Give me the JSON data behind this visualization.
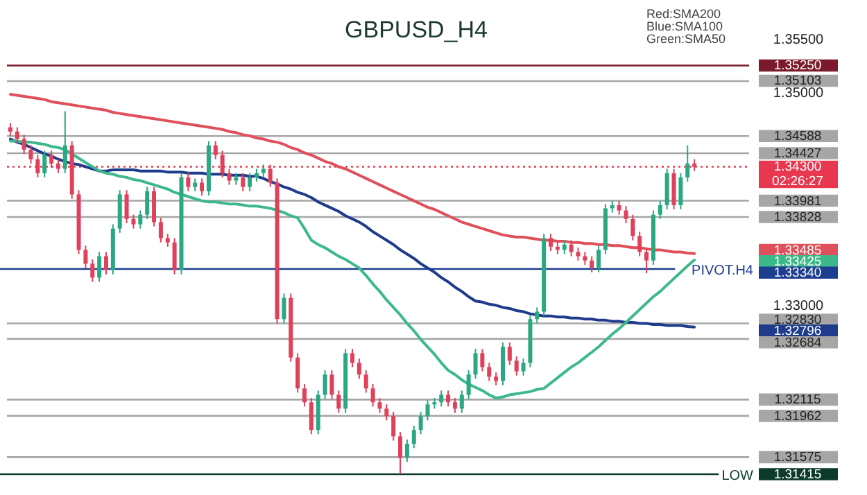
{
  "chart_data": {
    "type": "candlestick",
    "title": "GBPUSD_H4",
    "annotations": [
      "Red:SMA200",
      "Blue:SMA100",
      "Green:SMA50",
      "02:26:27"
    ],
    "categories": [
      null,
      null,
      null,
      null,
      null,
      null,
      null,
      null,
      null,
      null,
      null,
      null,
      null,
      null,
      null,
      null,
      null,
      null,
      null,
      null,
      null,
      null,
      null,
      null,
      null,
      null,
      null,
      null,
      null,
      null,
      null,
      null,
      null,
      null,
      null,
      null,
      null,
      null,
      null,
      null,
      null,
      null,
      null,
      null,
      null,
      null,
      null,
      null,
      null,
      null,
      null,
      null,
      null,
      null,
      null,
      null,
      null,
      null,
      null,
      null,
      null,
      null,
      null,
      null,
      null,
      null,
      null,
      null,
      null,
      null,
      null,
      null,
      null,
      null,
      null,
      null,
      null,
      null,
      null,
      null,
      null,
      null,
      null,
      null,
      null,
      null,
      null,
      null,
      null,
      null,
      null,
      null,
      null,
      null,
      null,
      null,
      null,
      null,
      null,
      null,
      null
    ],
    "ohlc": [
      [
        1.3467,
        1.3471,
        1.3459,
        1.3463
      ],
      [
        1.3463,
        1.3467,
        1.3452,
        1.3456
      ],
      [
        1.3456,
        1.346,
        1.3442,
        1.3446
      ],
      [
        1.3446,
        1.345,
        1.3433,
        1.3437
      ],
      [
        1.3437,
        1.3441,
        1.342,
        1.3424
      ],
      [
        1.3424,
        1.3445,
        1.342,
        1.3441
      ],
      [
        1.3441,
        1.3445,
        1.3429,
        1.3433
      ],
      [
        1.3433,
        1.3437,
        1.3424,
        1.3428
      ],
      [
        1.3428,
        1.3482,
        1.3424,
        1.345
      ],
      [
        1.345,
        1.3454,
        1.34,
        1.3404
      ],
      [
        1.3404,
        1.3408,
        1.3348,
        1.3352
      ],
      [
        1.3352,
        1.3356,
        1.3335,
        1.3339
      ],
      [
        1.3339,
        1.3343,
        1.3322,
        1.3326
      ],
      [
        1.3326,
        1.335,
        1.3322,
        1.3346
      ],
      [
        1.3346,
        1.335,
        1.3329,
        1.3333
      ],
      [
        1.3333,
        1.3376,
        1.3329,
        1.3372
      ],
      [
        1.3372,
        1.3408,
        1.3368,
        1.3404
      ],
      [
        1.3404,
        1.3408,
        1.3377,
        1.3381
      ],
      [
        1.3381,
        1.3385,
        1.3372,
        1.3376
      ],
      [
        1.3376,
        1.3389,
        1.3372,
        1.3385
      ],
      [
        1.3385,
        1.3411,
        1.3381,
        1.3407
      ],
      [
        1.3407,
        1.3411,
        1.3374,
        1.3378
      ],
      [
        1.3378,
        1.3382,
        1.3359,
        1.3363
      ],
      [
        1.3363,
        1.3367,
        1.3355,
        1.3359
      ],
      [
        1.3359,
        1.3363,
        1.3329,
        1.3333
      ],
      [
        1.3333,
        1.3424,
        1.3329,
        1.342
      ],
      [
        1.342,
        1.3424,
        1.3407,
        1.3411
      ],
      [
        1.3411,
        1.3419,
        1.3407,
        1.3415
      ],
      [
        1.3415,
        1.3419,
        1.3403,
        1.3407
      ],
      [
        1.3407,
        1.3454,
        1.3403,
        1.345
      ],
      [
        1.345,
        1.3454,
        1.3437,
        1.3441
      ],
      [
        1.3441,
        1.3445,
        1.342,
        1.3424
      ],
      [
        1.3424,
        1.3428,
        1.3413,
        1.3417
      ],
      [
        1.3417,
        1.3424,
        1.3413,
        1.342
      ],
      [
        1.342,
        1.3424,
        1.3407,
        1.3411
      ],
      [
        1.3411,
        1.3424,
        1.3407,
        1.342
      ],
      [
        1.342,
        1.3428,
        1.3416,
        1.3424
      ],
      [
        1.3424,
        1.3432,
        1.342,
        1.3428
      ],
      [
        1.3428,
        1.3432,
        1.3411,
        1.3415
      ],
      [
        1.3415,
        1.3419,
        1.3283,
        1.3287
      ],
      [
        1.3287,
        1.3311,
        1.3283,
        1.3307
      ],
      [
        1.3307,
        1.3311,
        1.3247,
        1.3251
      ],
      [
        1.3251,
        1.3255,
        1.3218,
        1.3222
      ],
      [
        1.3222,
        1.3226,
        1.3205,
        1.3209
      ],
      [
        1.3209,
        1.3213,
        1.3179,
        1.3183
      ],
      [
        1.3183,
        1.322,
        1.3179,
        1.3216
      ],
      [
        1.3216,
        1.3239,
        1.3212,
        1.3235
      ],
      [
        1.3235,
        1.3239,
        1.3212,
        1.3216
      ],
      [
        1.3216,
        1.322,
        1.3199,
        1.3203
      ],
      [
        1.3203,
        1.3259,
        1.3199,
        1.3255
      ],
      [
        1.3255,
        1.3259,
        1.3242,
        1.3246
      ],
      [
        1.3246,
        1.325,
        1.3231,
        1.3235
      ],
      [
        1.3235,
        1.3239,
        1.3218,
        1.3222
      ],
      [
        1.3222,
        1.3226,
        1.3205,
        1.3209
      ],
      [
        1.3209,
        1.3213,
        1.3199,
        1.3203
      ],
      [
        1.3203,
        1.3207,
        1.3192,
        1.3196
      ],
      [
        1.3196,
        1.32,
        1.3173,
        1.3177
      ],
      [
        1.3177,
        1.3181,
        1.31415,
        1.3157
      ],
      [
        1.3157,
        1.3174,
        1.3153,
        1.317
      ],
      [
        1.317,
        1.3187,
        1.3166,
        1.3183
      ],
      [
        1.3183,
        1.32,
        1.3179,
        1.3196
      ],
      [
        1.3196,
        1.3211,
        1.3192,
        1.3207
      ],
      [
        1.3207,
        1.3213,
        1.3203,
        1.3209
      ],
      [
        1.3209,
        1.322,
        1.3205,
        1.3216
      ],
      [
        1.3216,
        1.322,
        1.3205,
        1.3209
      ],
      [
        1.3209,
        1.3213,
        1.3199,
        1.3203
      ],
      [
        1.3203,
        1.322,
        1.3199,
        1.3216
      ],
      [
        1.3216,
        1.3239,
        1.3212,
        1.3235
      ],
      [
        1.3235,
        1.3259,
        1.3231,
        1.3255
      ],
      [
        1.3255,
        1.3259,
        1.3238,
        1.3242
      ],
      [
        1.3242,
        1.3246,
        1.3229,
        1.3233
      ],
      [
        1.3233,
        1.3237,
        1.3225,
        1.3229
      ],
      [
        1.3229,
        1.3265,
        1.3225,
        1.3261
      ],
      [
        1.3261,
        1.3265,
        1.3244,
        1.3248
      ],
      [
        1.3248,
        1.3252,
        1.3234,
        1.3238
      ],
      [
        1.3238,
        1.325,
        1.3234,
        1.3246
      ],
      [
        1.3246,
        1.3291,
        1.3242,
        1.3287
      ],
      [
        1.3287,
        1.3298,
        1.3283,
        1.3294
      ],
      [
        1.3294,
        1.3367,
        1.329,
        1.3363
      ],
      [
        1.3363,
        1.3367,
        1.3351,
        1.3355
      ],
      [
        1.3355,
        1.3359,
        1.3348,
        1.3352
      ],
      [
        1.3352,
        1.3361,
        1.3348,
        1.3357
      ],
      [
        1.3357,
        1.3361,
        1.3346,
        1.335
      ],
      [
        1.335,
        1.3354,
        1.3342,
        1.3346
      ],
      [
        1.3346,
        1.335,
        1.3338,
        1.3342
      ],
      [
        1.3342,
        1.3346,
        1.3331,
        1.3335
      ],
      [
        1.3335,
        1.3356,
        1.3331,
        1.3352
      ],
      [
        1.3352,
        1.3395,
        1.3348,
        1.3391
      ],
      [
        1.3391,
        1.3398,
        1.3387,
        1.3394
      ],
      [
        1.3394,
        1.3398,
        1.3385,
        1.3389
      ],
      [
        1.3389,
        1.3393,
        1.3377,
        1.3381
      ],
      [
        1.3381,
        1.3385,
        1.3361,
        1.3365
      ],
      [
        1.3365,
        1.3369,
        1.3346,
        1.335
      ],
      [
        1.335,
        1.3354,
        1.333,
        1.3342
      ],
      [
        1.3342,
        1.3389,
        1.3338,
        1.3385
      ],
      [
        1.3385,
        1.3398,
        1.3381,
        1.3394
      ],
      [
        1.3394,
        1.3428,
        1.339,
        1.3424
      ],
      [
        1.3424,
        1.3428,
        1.339,
        1.3394
      ],
      [
        1.3394,
        1.3424,
        1.339,
        1.342
      ],
      [
        1.342,
        1.345,
        1.3416,
        1.3433
      ],
      [
        1.3433,
        1.3437,
        1.3426,
        1.343
      ]
    ],
    "series": [
      {
        "type": "line",
        "color": "#e0505a",
        "values": [
          1.3498,
          1.3497,
          1.3496,
          1.3495,
          1.3494,
          1.3493,
          1.3491,
          1.349,
          1.3489,
          1.3488,
          1.3487,
          1.3486,
          1.3485,
          1.3484,
          1.3483,
          1.3481,
          1.348,
          1.3479,
          1.3478,
          1.3477,
          1.3476,
          1.3475,
          1.3474,
          1.3473,
          1.3472,
          1.3471,
          1.347,
          1.3469,
          1.3468,
          1.3467,
          1.3466,
          1.3465,
          1.3463,
          1.3462,
          1.346,
          1.3459,
          1.3457,
          1.3456,
          1.3454,
          1.3453,
          1.3451,
          1.3448,
          1.3446,
          1.3443,
          1.3441,
          1.3438,
          1.3435,
          1.3433,
          1.343,
          1.3428,
          1.3425,
          1.3422,
          1.3419,
          1.3416,
          1.3413,
          1.341,
          1.3407,
          1.3404,
          1.3401,
          1.3398,
          1.3395,
          1.3392,
          1.339,
          1.3387,
          1.3384,
          1.3381,
          1.3378,
          1.3376,
          1.3374,
          1.3372,
          1.337,
          1.3368,
          1.3366,
          1.3365,
          1.3364,
          1.3364,
          1.3363,
          1.3362,
          1.3361,
          1.3361,
          1.336,
          1.336,
          1.3359,
          1.3359,
          1.3358,
          1.3358,
          1.3357,
          1.3357,
          1.3356,
          1.3356,
          1.3355,
          1.3354,
          1.3354,
          1.3353,
          1.3352,
          1.3352,
          1.3351,
          1.335,
          1.335,
          1.3349,
          1.33485
        ]
      },
      {
        "type": "line",
        "color": "#1f3c8c",
        "values": [
          1.3456,
          1.3453,
          1.3451,
          1.3448,
          1.3445,
          1.3442,
          1.344,
          1.3437,
          1.3435,
          1.3433,
          1.3432,
          1.343,
          1.3428,
          1.3426,
          1.3426,
          1.3427,
          1.3427,
          1.3427,
          1.3427,
          1.3426,
          1.3426,
          1.3426,
          1.3426,
          1.3425,
          1.3425,
          1.3425,
          1.3424,
          1.3424,
          1.3424,
          1.3423,
          1.3423,
          1.3423,
          1.3422,
          1.3422,
          1.3422,
          1.3421,
          1.3421,
          1.3419,
          1.3416,
          1.3414,
          1.3411,
          1.3409,
          1.3406,
          1.3404,
          1.3401,
          1.3397,
          1.3394,
          1.3391,
          1.3388,
          1.3384,
          1.3381,
          1.3378,
          1.3374,
          1.3369,
          1.3365,
          1.3361,
          1.3357,
          1.3352,
          1.3348,
          1.3344,
          1.3339,
          1.3335,
          1.3331,
          1.3326,
          1.3322,
          1.3317,
          1.3313,
          1.3308,
          1.3304,
          1.3303,
          1.3301,
          1.33,
          1.3298,
          1.3297,
          1.3295,
          1.3294,
          1.3292,
          1.3291,
          1.329,
          1.329,
          1.3289,
          1.3289,
          1.3288,
          1.3288,
          1.3287,
          1.3287,
          1.3286,
          1.3286,
          1.3285,
          1.3285,
          1.3284,
          1.3284,
          1.3283,
          1.3283,
          1.3282,
          1.3282,
          1.3281,
          1.3281,
          1.3281,
          1.328,
          1.32796
        ]
      },
      {
        "type": "line",
        "color": "#3cb98a",
        "values": [
          1.3454,
          1.3454,
          1.3453,
          1.3453,
          1.3452,
          1.3451,
          1.3449,
          1.3448,
          1.3446,
          1.3442,
          1.3438,
          1.3434,
          1.343,
          1.3426,
          1.3424,
          1.3423,
          1.3421,
          1.342,
          1.3418,
          1.3417,
          1.3415,
          1.3413,
          1.3411,
          1.3409,
          1.3406,
          1.3404,
          1.3402,
          1.34,
          1.3398,
          1.3397,
          1.3397,
          1.3396,
          1.3395,
          1.3395,
          1.3394,
          1.3393,
          1.3393,
          1.3392,
          1.3391,
          1.3389,
          1.3387,
          1.3384,
          1.3382,
          1.3372,
          1.3361,
          1.3357,
          1.3354,
          1.335,
          1.3346,
          1.3343,
          1.3339,
          1.3335,
          1.3328,
          1.332,
          1.3313,
          1.3305,
          1.3298,
          1.3291,
          1.3283,
          1.3276,
          1.3268,
          1.3261,
          1.3254,
          1.3246,
          1.3239,
          1.3235,
          1.323,
          1.3226,
          1.3223,
          1.322,
          1.3216,
          1.3213,
          1.3214,
          1.3216,
          1.3217,
          1.3218,
          1.3219,
          1.3221,
          1.3222,
          1.3227,
          1.3232,
          1.3237,
          1.3242,
          1.3246,
          1.3251,
          1.3256,
          1.3261,
          1.3267,
          1.3273,
          1.3278,
          1.3284,
          1.329,
          1.3296,
          1.3302,
          1.3308,
          1.3313,
          1.3319,
          1.3325,
          1.3331,
          1.3337,
          1.33425
        ]
      }
    ],
    "ylim": [
      1.31415,
      1.355
    ],
    "yticks": [
      {
        "value": 1.355,
        "label": "1.35500"
      },
      {
        "value": 1.3525,
        "label": "1.35250"
      },
      {
        "value": 1.35103,
        "label": "1.35103"
      },
      {
        "value": 1.35,
        "label": "1.35000"
      },
      {
        "value": 1.34588,
        "label": "1.34588"
      },
      {
        "value": 1.34427,
        "label": "1.34427"
      },
      {
        "value": 1.343,
        "label": "1.34300"
      },
      {
        "value": 1.33981,
        "label": "1.33981"
      },
      {
        "value": 1.33828,
        "label": "1.33828"
      },
      {
        "value": 1.33485,
        "label": "1.33485"
      },
      {
        "value": 1.33425,
        "label": "1.33425"
      },
      {
        "value": 1.3334,
        "label": "1.33340"
      },
      {
        "value": 1.33,
        "label": "1.33000"
      },
      {
        "value": 1.3283,
        "label": "1.32830"
      },
      {
        "value": 1.32796,
        "label": "1.32796"
      },
      {
        "value": 1.32684,
        "label": "1.32684"
      },
      {
        "value": 1.32115,
        "label": "1.32115"
      },
      {
        "value": 1.31962,
        "label": "1.31962"
      },
      {
        "value": 1.31575,
        "label": "1.31575"
      },
      {
        "value": 1.31415,
        "label": "1.31415"
      }
    ],
    "tick_labels": "y",
    "ref_lines": [
      {
        "axis": "y",
        "value": 1.3525,
        "color": "#7a1a2b"
      },
      {
        "axis": "y",
        "value": 1.35103,
        "color": "#a6a6a6"
      },
      {
        "axis": "y",
        "value": 1.34588,
        "color": "#a6a6a6"
      },
      {
        "axis": "y",
        "value": 1.34427,
        "color": "#a6a6a6"
      },
      {
        "axis": "y",
        "value": 1.343,
        "color": "#e8384f",
        "line_style": "dotted"
      },
      {
        "axis": "y",
        "value": 1.33981,
        "color": "#a6a6a6"
      },
      {
        "axis": "y",
        "value": 1.33828,
        "color": "#a6a6a6"
      },
      {
        "axis": "y",
        "value": 1.3334,
        "color": "#1d3d8f",
        "label": "PIVOT.H4"
      },
      {
        "axis": "y",
        "value": 1.3283,
        "color": "#a6a6a6"
      },
      {
        "axis": "y",
        "value": 1.32684,
        "color": "#a6a6a6"
      },
      {
        "axis": "y",
        "value": 1.32115,
        "color": "#a6a6a6"
      },
      {
        "axis": "y",
        "value": 1.31962,
        "color": "#a6a6a6"
      },
      {
        "axis": "y",
        "value": 1.31575,
        "color": "#a6a6a6"
      },
      {
        "axis": "y",
        "value": 1.31415,
        "color": "#0d3b2a",
        "label": "LOW"
      }
    ]
  }
}
